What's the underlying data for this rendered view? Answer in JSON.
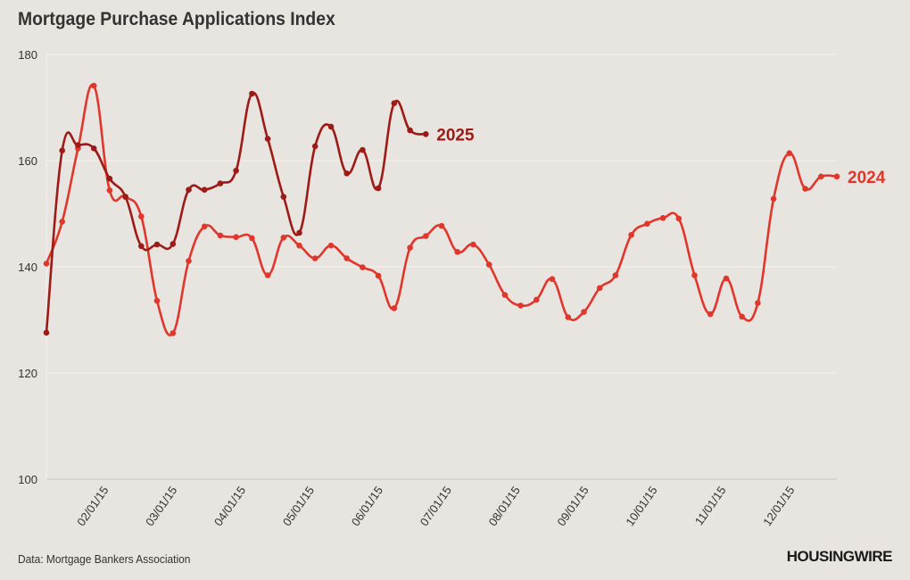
{
  "title": "Mortgage Purchase Applications Index",
  "source": "Data: Mortgage Bankers Association",
  "brand": "HOUSINGWIRE",
  "chart_data": {
    "type": "line",
    "title": "Mortgage Purchase Applications Index",
    "xlabel": "",
    "ylabel": "",
    "ylim": [
      100,
      180
    ],
    "yticks": [
      100,
      120,
      140,
      160,
      180
    ],
    "xticks": [
      "02/01/15",
      "03/01/15",
      "04/01/15",
      "05/01/15",
      "06/01/15",
      "07/01/15",
      "08/01/15",
      "09/01/15",
      "10/01/15",
      "11/01/15",
      "12/01/15"
    ],
    "grid": true,
    "series": [
      {
        "name": "2025",
        "color": "#9e1a16",
        "values": [
          127.6,
          161.9,
          162.9,
          162.3,
          156.6,
          153.2,
          143.9,
          144.2,
          144.3,
          154.5,
          154.5,
          155.7,
          158.1,
          172.6,
          164.1,
          153.2,
          146.4,
          162.7,
          166.4,
          157.6,
          162.0,
          154.8,
          170.8,
          165.7,
          165.0
        ]
      },
      {
        "name": "2024",
        "color": "#e0362c",
        "values": [
          140.6,
          148.5,
          162.3,
          174.1,
          154.4,
          153.2,
          149.5,
          133.6,
          127.5,
          141.1,
          147.6,
          145.9,
          145.6,
          145.4,
          138.4,
          145.5,
          144.0,
          141.6,
          144.0,
          141.6,
          139.9,
          138.3,
          132.2,
          143.6,
          145.8,
          147.7,
          142.8,
          144.2,
          140.4,
          134.7,
          132.7,
          133.8,
          137.7,
          130.5,
          131.5,
          136.0,
          138.4,
          146.0,
          148.1,
          149.2,
          149.1,
          138.4,
          131.1,
          137.8,
          130.6,
          133.2,
          152.8,
          161.4,
          154.7,
          157.0,
          157.0
        ]
      }
    ]
  }
}
